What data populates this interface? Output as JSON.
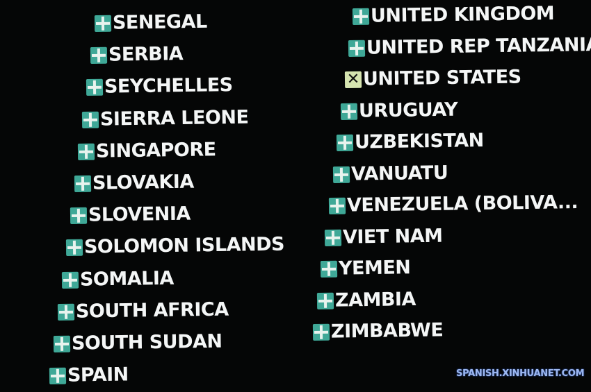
{
  "board": {
    "left_column": [
      {
        "country": "SENEGAL",
        "vote": "yes"
      },
      {
        "country": "SERBIA",
        "vote": "yes"
      },
      {
        "country": "SEYCHELLES",
        "vote": "yes"
      },
      {
        "country": "SIERRA LEONE",
        "vote": "yes"
      },
      {
        "country": "SINGAPORE",
        "vote": "yes"
      },
      {
        "country": "SLOVAKIA",
        "vote": "yes"
      },
      {
        "country": "SLOVENIA",
        "vote": "yes"
      },
      {
        "country": "SOLOMON ISLANDS",
        "vote": "yes"
      },
      {
        "country": "SOMALIA",
        "vote": "yes"
      },
      {
        "country": "SOUTH AFRICA",
        "vote": "yes"
      },
      {
        "country": "SOUTH SUDAN",
        "vote": "yes"
      },
      {
        "country": "SPAIN",
        "vote": "yes"
      }
    ],
    "right_column": [
      {
        "country": "UNITED KINGDOM",
        "vote": "yes"
      },
      {
        "country": "UNITED REP TANZANIA",
        "vote": "yes"
      },
      {
        "country": "UNITED STATES",
        "vote": "no"
      },
      {
        "country": "URUGUAY",
        "vote": "yes"
      },
      {
        "country": "UZBEKISTAN",
        "vote": "yes"
      },
      {
        "country": "VANUATU",
        "vote": "yes"
      },
      {
        "country": "VENEZUELA (BOLIVA...",
        "vote": "yes"
      },
      {
        "country": "VIET NAM",
        "vote": "yes"
      },
      {
        "country": "YEMEN",
        "vote": "yes"
      },
      {
        "country": "ZAMBIA",
        "vote": "yes"
      },
      {
        "country": "ZIMBABWE",
        "vote": "yes"
      }
    ],
    "icons": {
      "yes": "plus-icon",
      "no": "x-icon"
    },
    "colors": {
      "yes": "#3fa897",
      "no": "#d6e4b0",
      "background": "#050606"
    }
  },
  "watermark": "SPANISH.XINHUANET.COM"
}
